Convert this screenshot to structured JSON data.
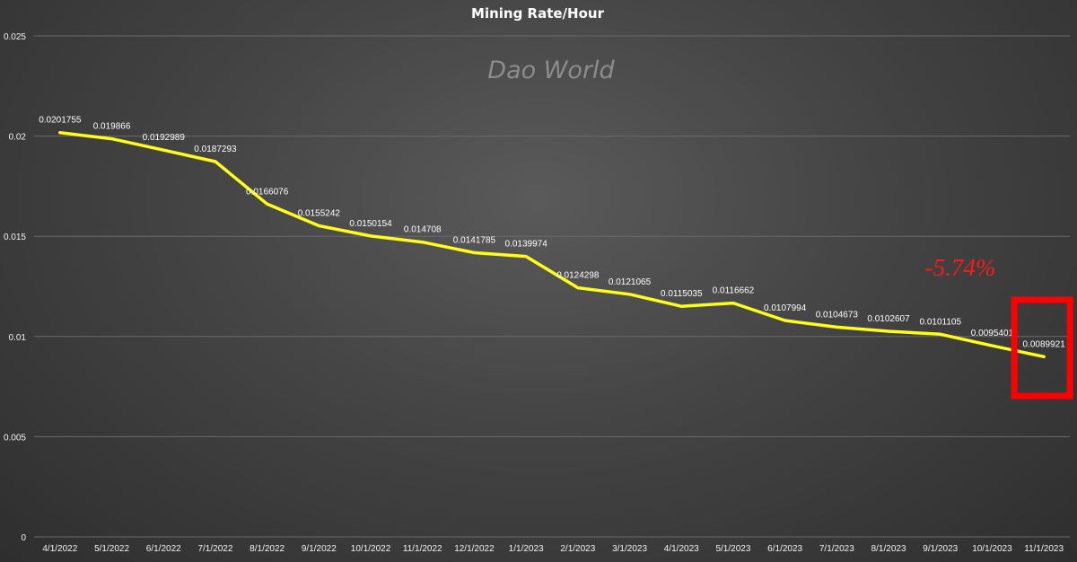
{
  "chart_data": {
    "type": "line",
    "title": "Mining Rate/Hour",
    "watermark": "Dao World",
    "annotation": "-5.74%",
    "xlabel": "",
    "ylabel": "",
    "ylim": [
      0,
      0.025
    ],
    "yticks": [
      "0",
      "0.005",
      "0.01",
      "0.015",
      "0.02",
      "0.025"
    ],
    "grid": true,
    "legend": "none",
    "line_color": "#ffff1a",
    "highlight_color": "#ff0000",
    "categories": [
      "4/1/2022",
      "5/1/2022",
      "6/1/2022",
      "7/1/2022",
      "8/1/2022",
      "9/1/2022",
      "10/1/2022",
      "11/1/2022",
      "12/1/2022",
      "1/1/2023",
      "2/1/2023",
      "3/1/2023",
      "4/1/2023",
      "5/1/2023",
      "6/1/2023",
      "7/1/2023",
      "8/1/2023",
      "9/1/2023",
      "10/1/2023",
      "11/1/2023"
    ],
    "values": [
      0.0201755,
      0.019866,
      0.0192989,
      0.0187293,
      0.0166076,
      0.0155242,
      0.0150154,
      0.014708,
      0.0141785,
      0.0139974,
      0.0124298,
      0.0121065,
      0.0115035,
      0.0116662,
      0.0107994,
      0.0104673,
      0.0102607,
      0.0101105,
      0.0095401,
      0.0089921
    ],
    "data_labels": [
      "0.0201755",
      "0.019866",
      "0.0192989",
      "0.0187293",
      "0.0166076",
      "0.0155242",
      "0.0150154",
      "0.014708",
      "0.0141785",
      "0.0139974",
      "0.0124298",
      "0.0121065",
      "0.0115035",
      "0.0116662",
      "0.0107994",
      "0.0104673",
      "0.0102607",
      "0.0101105",
      "0.0095401",
      "0.0089921"
    ],
    "highlighted_category": "11/1/2023"
  }
}
